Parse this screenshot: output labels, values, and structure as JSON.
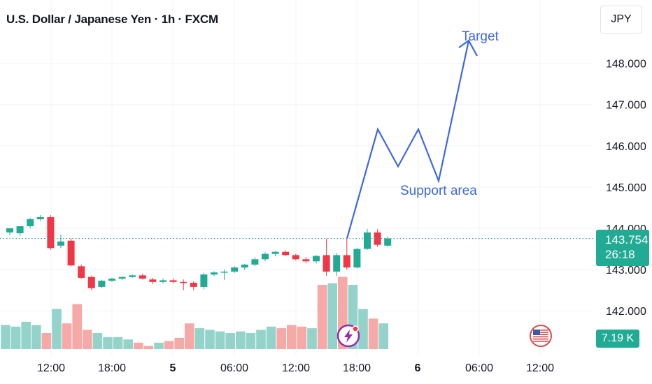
{
  "header": {
    "title": "U.S. Dollar / Japanese Yen · 1h · FXCM",
    "currency_button": "JPY"
  },
  "price_scale": {
    "current_price": "143.754",
    "countdown": "26:18",
    "volume": "7.19 K"
  },
  "colors": {
    "up": "#22ab94",
    "down": "#f23645",
    "volume_up": "#94d3ca",
    "volume_down": "#f7a9a7",
    "annotation": "#3f68e0",
    "grid": "#f0f3fa"
  },
  "icons": [
    "lightning-event-icon",
    "us-flag-icon"
  ],
  "chart_data": {
    "type": "candlestick",
    "symbol": "U.S. Dollar / Japanese Yen",
    "interval": "1h",
    "source": "FXCM",
    "y_axis": {
      "ticks": [
        142.0,
        143.0,
        144.0,
        145.0,
        146.0,
        147.0,
        148.0
      ],
      "tick_labels": [
        "142.000",
        "143.000",
        "144.000",
        "145.000",
        "146.000",
        "147.000",
        "148.000"
      ],
      "ylim": [
        141.5,
        149.0
      ]
    },
    "x_axis": {
      "tick_labels": [
        "12:00",
        "18:00",
        "5",
        "06:00",
        "12:00",
        "18:00",
        "6",
        "06:00",
        "12:00"
      ],
      "bold_labels": [
        "5",
        "6"
      ]
    },
    "grid": true,
    "last_price": 143.754,
    "candles": [
      {
        "o": 143.9,
        "h": 144.0,
        "l": 143.83,
        "c": 144.0
      },
      {
        "o": 143.88,
        "h": 144.05,
        "l": 143.82,
        "c": 144.05
      },
      {
        "o": 144.05,
        "h": 144.25,
        "l": 144.0,
        "c": 144.22
      },
      {
        "o": 144.22,
        "h": 144.32,
        "l": 144.18,
        "c": 144.27
      },
      {
        "o": 144.27,
        "h": 144.32,
        "l": 143.48,
        "c": 143.52
      },
      {
        "o": 143.58,
        "h": 143.85,
        "l": 143.52,
        "c": 143.68
      },
      {
        "o": 143.7,
        "h": 143.75,
        "l": 143.08,
        "c": 143.1
      },
      {
        "o": 143.08,
        "h": 143.12,
        "l": 142.78,
        "c": 142.8
      },
      {
        "o": 142.82,
        "h": 142.85,
        "l": 142.5,
        "c": 142.55
      },
      {
        "o": 142.58,
        "h": 142.75,
        "l": 142.55,
        "c": 142.73
      },
      {
        "o": 142.73,
        "h": 142.8,
        "l": 142.7,
        "c": 142.78
      },
      {
        "o": 142.78,
        "h": 142.83,
        "l": 142.75,
        "c": 142.82
      },
      {
        "o": 142.82,
        "h": 142.88,
        "l": 142.8,
        "c": 142.86
      },
      {
        "o": 142.86,
        "h": 142.9,
        "l": 142.76,
        "c": 142.78
      },
      {
        "o": 142.76,
        "h": 142.8,
        "l": 142.65,
        "c": 142.7
      },
      {
        "o": 142.7,
        "h": 142.78,
        "l": 142.66,
        "c": 142.74
      },
      {
        "o": 142.74,
        "h": 142.78,
        "l": 142.66,
        "c": 142.7
      },
      {
        "o": 142.7,
        "h": 142.76,
        "l": 142.5,
        "c": 142.68
      },
      {
        "o": 142.68,
        "h": 142.72,
        "l": 142.5,
        "c": 142.58
      },
      {
        "o": 142.58,
        "h": 142.92,
        "l": 142.52,
        "c": 142.88
      },
      {
        "o": 142.88,
        "h": 142.96,
        "l": 142.84,
        "c": 142.93
      },
      {
        "o": 142.93,
        "h": 143.0,
        "l": 142.75,
        "c": 142.95
      },
      {
        "o": 142.95,
        "h": 143.08,
        "l": 142.92,
        "c": 143.05
      },
      {
        "o": 143.05,
        "h": 143.14,
        "l": 142.99,
        "c": 143.12
      },
      {
        "o": 143.12,
        "h": 143.3,
        "l": 143.08,
        "c": 143.25
      },
      {
        "o": 143.25,
        "h": 143.42,
        "l": 143.2,
        "c": 143.38
      },
      {
        "o": 143.38,
        "h": 143.45,
        "l": 143.32,
        "c": 143.43
      },
      {
        "o": 143.43,
        "h": 143.46,
        "l": 143.33,
        "c": 143.35
      },
      {
        "o": 143.35,
        "h": 143.38,
        "l": 143.22,
        "c": 143.25
      },
      {
        "o": 143.25,
        "h": 143.3,
        "l": 143.15,
        "c": 143.2
      },
      {
        "o": 143.2,
        "h": 143.35,
        "l": 143.15,
        "c": 143.33
      },
      {
        "o": 143.35,
        "h": 143.75,
        "l": 142.85,
        "c": 142.95
      },
      {
        "o": 142.95,
        "h": 143.4,
        "l": 142.85,
        "c": 143.35
      },
      {
        "o": 143.35,
        "h": 143.78,
        "l": 143.0,
        "c": 143.05
      },
      {
        "o": 143.05,
        "h": 143.52,
        "l": 143.03,
        "c": 143.5
      },
      {
        "o": 143.5,
        "h": 143.98,
        "l": 143.48,
        "c": 143.9
      },
      {
        "o": 143.9,
        "h": 143.98,
        "l": 143.55,
        "c": 143.6
      },
      {
        "o": 143.58,
        "h": 143.8,
        "l": 143.55,
        "c": 143.754
      }
    ],
    "volume": [
      30,
      28,
      34,
      30,
      20,
      50,
      32,
      56,
      24,
      20,
      15,
      15,
      12,
      8,
      4,
      8,
      10,
      14,
      32,
      26,
      24,
      22,
      20,
      22,
      20,
      24,
      28,
      26,
      30,
      28,
      26,
      80,
      82,
      90,
      80,
      50,
      38,
      32
    ],
    "annotations": {
      "path_prices": [
        143.754,
        146.4,
        145.5,
        146.4,
        145.15,
        148.55
      ],
      "labels": [
        "Support area",
        "Target"
      ]
    }
  }
}
